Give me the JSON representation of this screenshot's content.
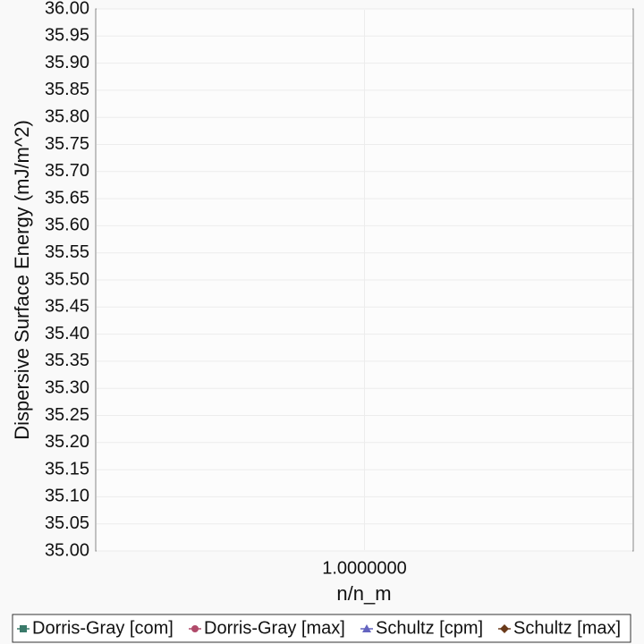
{
  "chart_data": {
    "type": "line",
    "y_label": "Dispersive Surface Energy (mJ/m^2)",
    "x_label": "n/n_m",
    "xlim": [
      0,
      2
    ],
    "xticks": [
      {
        "value": 1,
        "label": "1.0000000"
      }
    ],
    "ylim": [
      35,
      36
    ],
    "yticks": [
      {
        "value": 35,
        "label": "35.00"
      },
      {
        "value": 35.05,
        "label": "35.05"
      },
      {
        "value": 35.1,
        "label": "35.10"
      },
      {
        "value": 35.15,
        "label": "35.15"
      },
      {
        "value": 35.2,
        "label": "35.20"
      },
      {
        "value": 35.25,
        "label": "35.25"
      },
      {
        "value": 35.3,
        "label": "35.30"
      },
      {
        "value": 35.35,
        "label": "35.35"
      },
      {
        "value": 35.4,
        "label": "35.40"
      },
      {
        "value": 35.45,
        "label": "35.45"
      },
      {
        "value": 35.5,
        "label": "35.50"
      },
      {
        "value": 35.55,
        "label": "35.55"
      },
      {
        "value": 35.6,
        "label": "35.60"
      },
      {
        "value": 35.65,
        "label": "35.65"
      },
      {
        "value": 35.7,
        "label": "35.70"
      },
      {
        "value": 35.75,
        "label": "35.75"
      },
      {
        "value": 35.8,
        "label": "35.80"
      },
      {
        "value": 35.85,
        "label": "35.85"
      },
      {
        "value": 35.9,
        "label": "35.90"
      },
      {
        "value": 35.95,
        "label": "35.95"
      },
      {
        "value": 36,
        "label": "36.00"
      }
    ],
    "grid": true,
    "legend": "bottom",
    "series": [
      {
        "name": "Dorris-Gray [com]",
        "color": "#3a7a6a",
        "marker": "square",
        "x": [],
        "values": []
      },
      {
        "name": "Dorris-Gray [max]",
        "color": "#b04a6a",
        "marker": "circle",
        "x": [],
        "values": []
      },
      {
        "name": "Schultz [cpm]",
        "color": "#6464c0",
        "marker": "triangle",
        "x": [],
        "values": []
      },
      {
        "name": "Schultz [max]",
        "color": "#6a3a1a",
        "marker": "diamond",
        "x": [],
        "values": []
      }
    ]
  }
}
